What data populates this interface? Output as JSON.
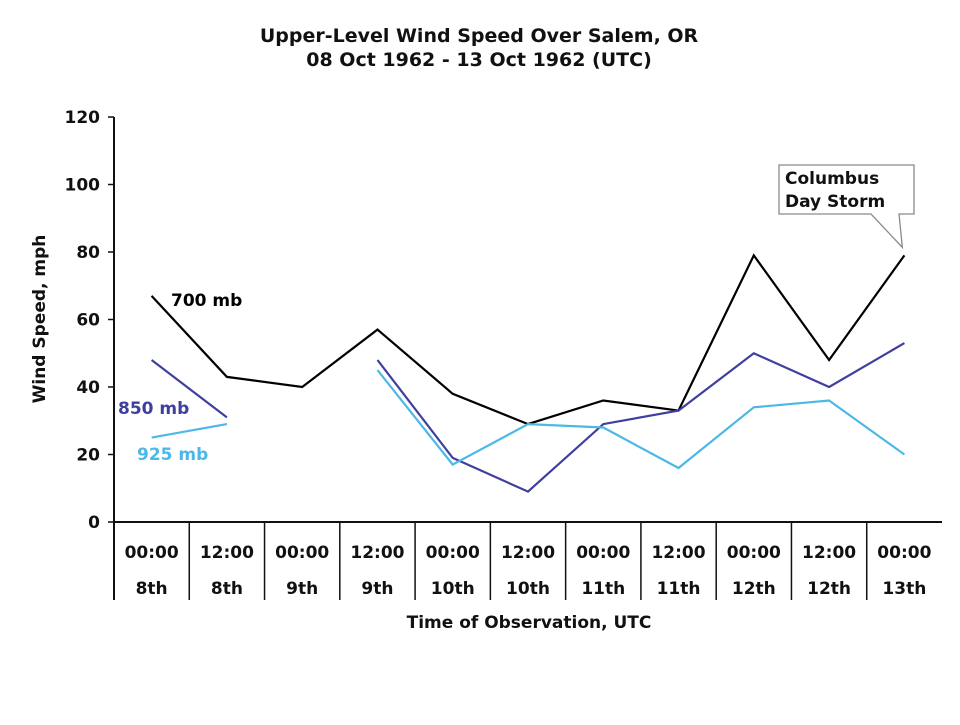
{
  "chart_data": {
    "type": "line",
    "title": "Upper-Level Wind Speed Over Salem, OR",
    "subtitle": "08 Oct 1962 - 13 Oct 1962 (UTC)",
    "xlabel": "Time of Observation, UTC",
    "ylabel": "Wind Speed, mph",
    "ylim": [
      0,
      120
    ],
    "yticks": [
      "0",
      "20",
      "40",
      "60",
      "80",
      "100",
      "120"
    ],
    "categories": [
      {
        "time": "00:00",
        "day": "8th"
      },
      {
        "time": "12:00",
        "day": "8th"
      },
      {
        "time": "00:00",
        "day": "9th"
      },
      {
        "time": "12:00",
        "day": "9th"
      },
      {
        "time": "00:00",
        "day": "10th"
      },
      {
        "time": "12:00",
        "day": "10th"
      },
      {
        "time": "00:00",
        "day": "11th"
      },
      {
        "time": "12:00",
        "day": "11th"
      },
      {
        "time": "00:00",
        "day": "12th"
      },
      {
        "time": "12:00",
        "day": "12th"
      },
      {
        "time": "00:00",
        "day": "13th"
      }
    ],
    "series": [
      {
        "name": "700 mb",
        "color": "#000000",
        "values": [
          67,
          43,
          40,
          57,
          38,
          29,
          36,
          33,
          79,
          48,
          79
        ]
      },
      {
        "name": "850 mb",
        "color": "#3f3f9e",
        "values": [
          48,
          31,
          null,
          48,
          19,
          9,
          29,
          33,
          50,
          40,
          53
        ]
      },
      {
        "name": "925 mb",
        "color": "#4db8e8",
        "values": [
          25,
          29,
          null,
          45,
          17,
          29,
          28,
          16,
          34,
          36,
          20
        ]
      }
    ],
    "annotation": {
      "lines": [
        "Columbus",
        "Day Storm"
      ],
      "points_to": {
        "category_index": 10,
        "value": 79
      }
    },
    "grid": false,
    "legend": "inline labels"
  }
}
